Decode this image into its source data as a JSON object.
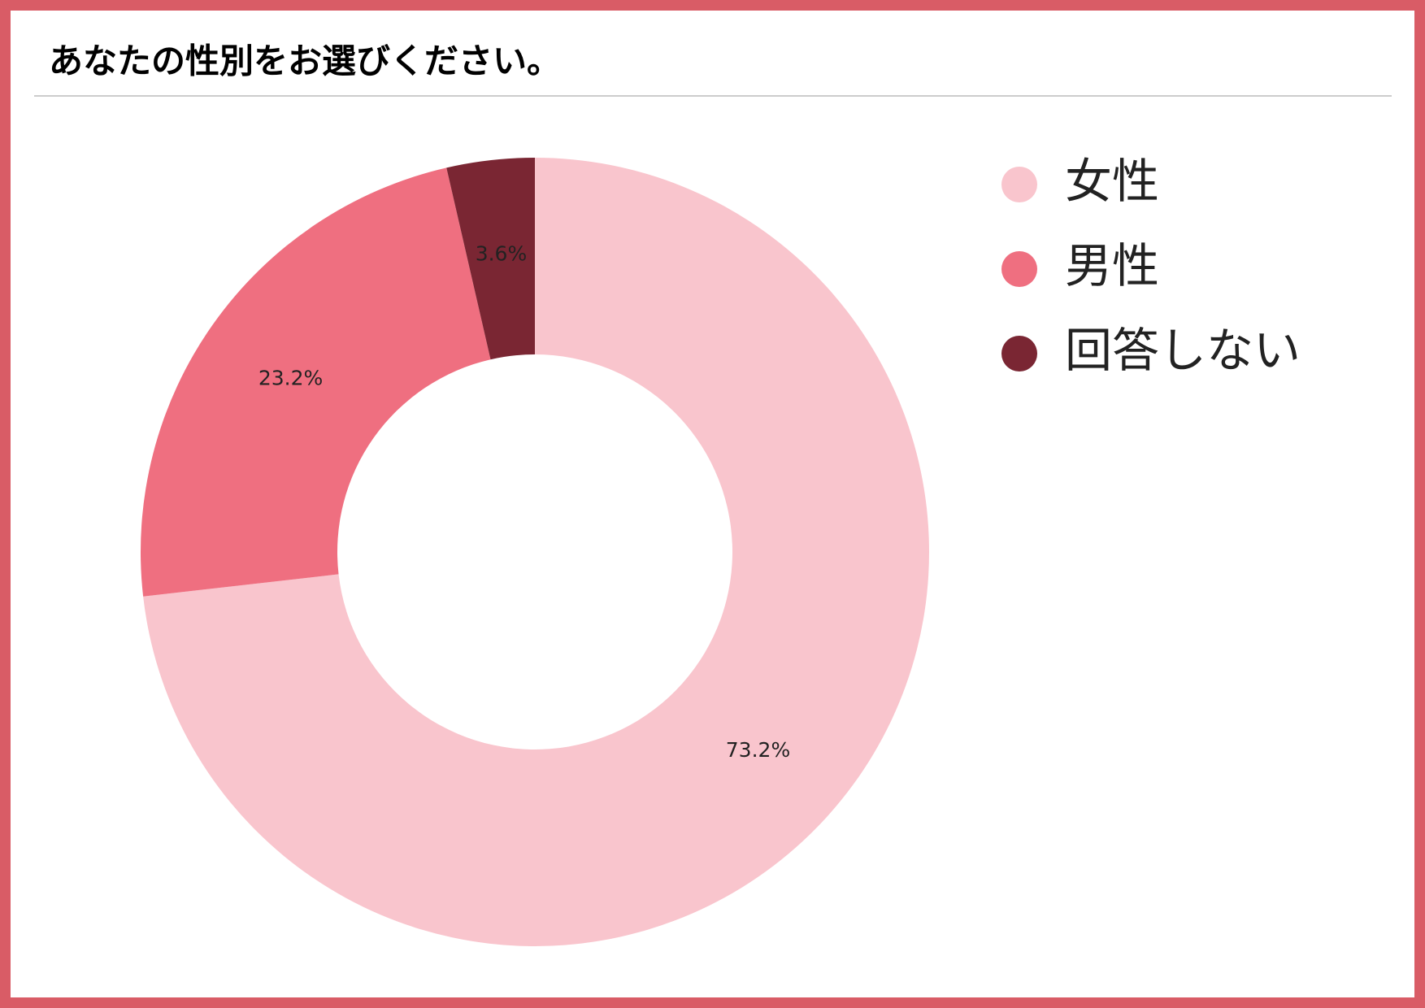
{
  "chart_data": {
    "type": "donut",
    "title": "あなたの性別をお選びください。",
    "categories": [
      "女性",
      "男性",
      "回答しない"
    ],
    "values": [
      73.2,
      23.2,
      3.6
    ],
    "value_labels": [
      "73.2%",
      "23.2%",
      "3.6%"
    ],
    "colors": [
      "#f9c5cd",
      "#ef6f80",
      "#7a2633"
    ],
    "legend": "top-right"
  }
}
